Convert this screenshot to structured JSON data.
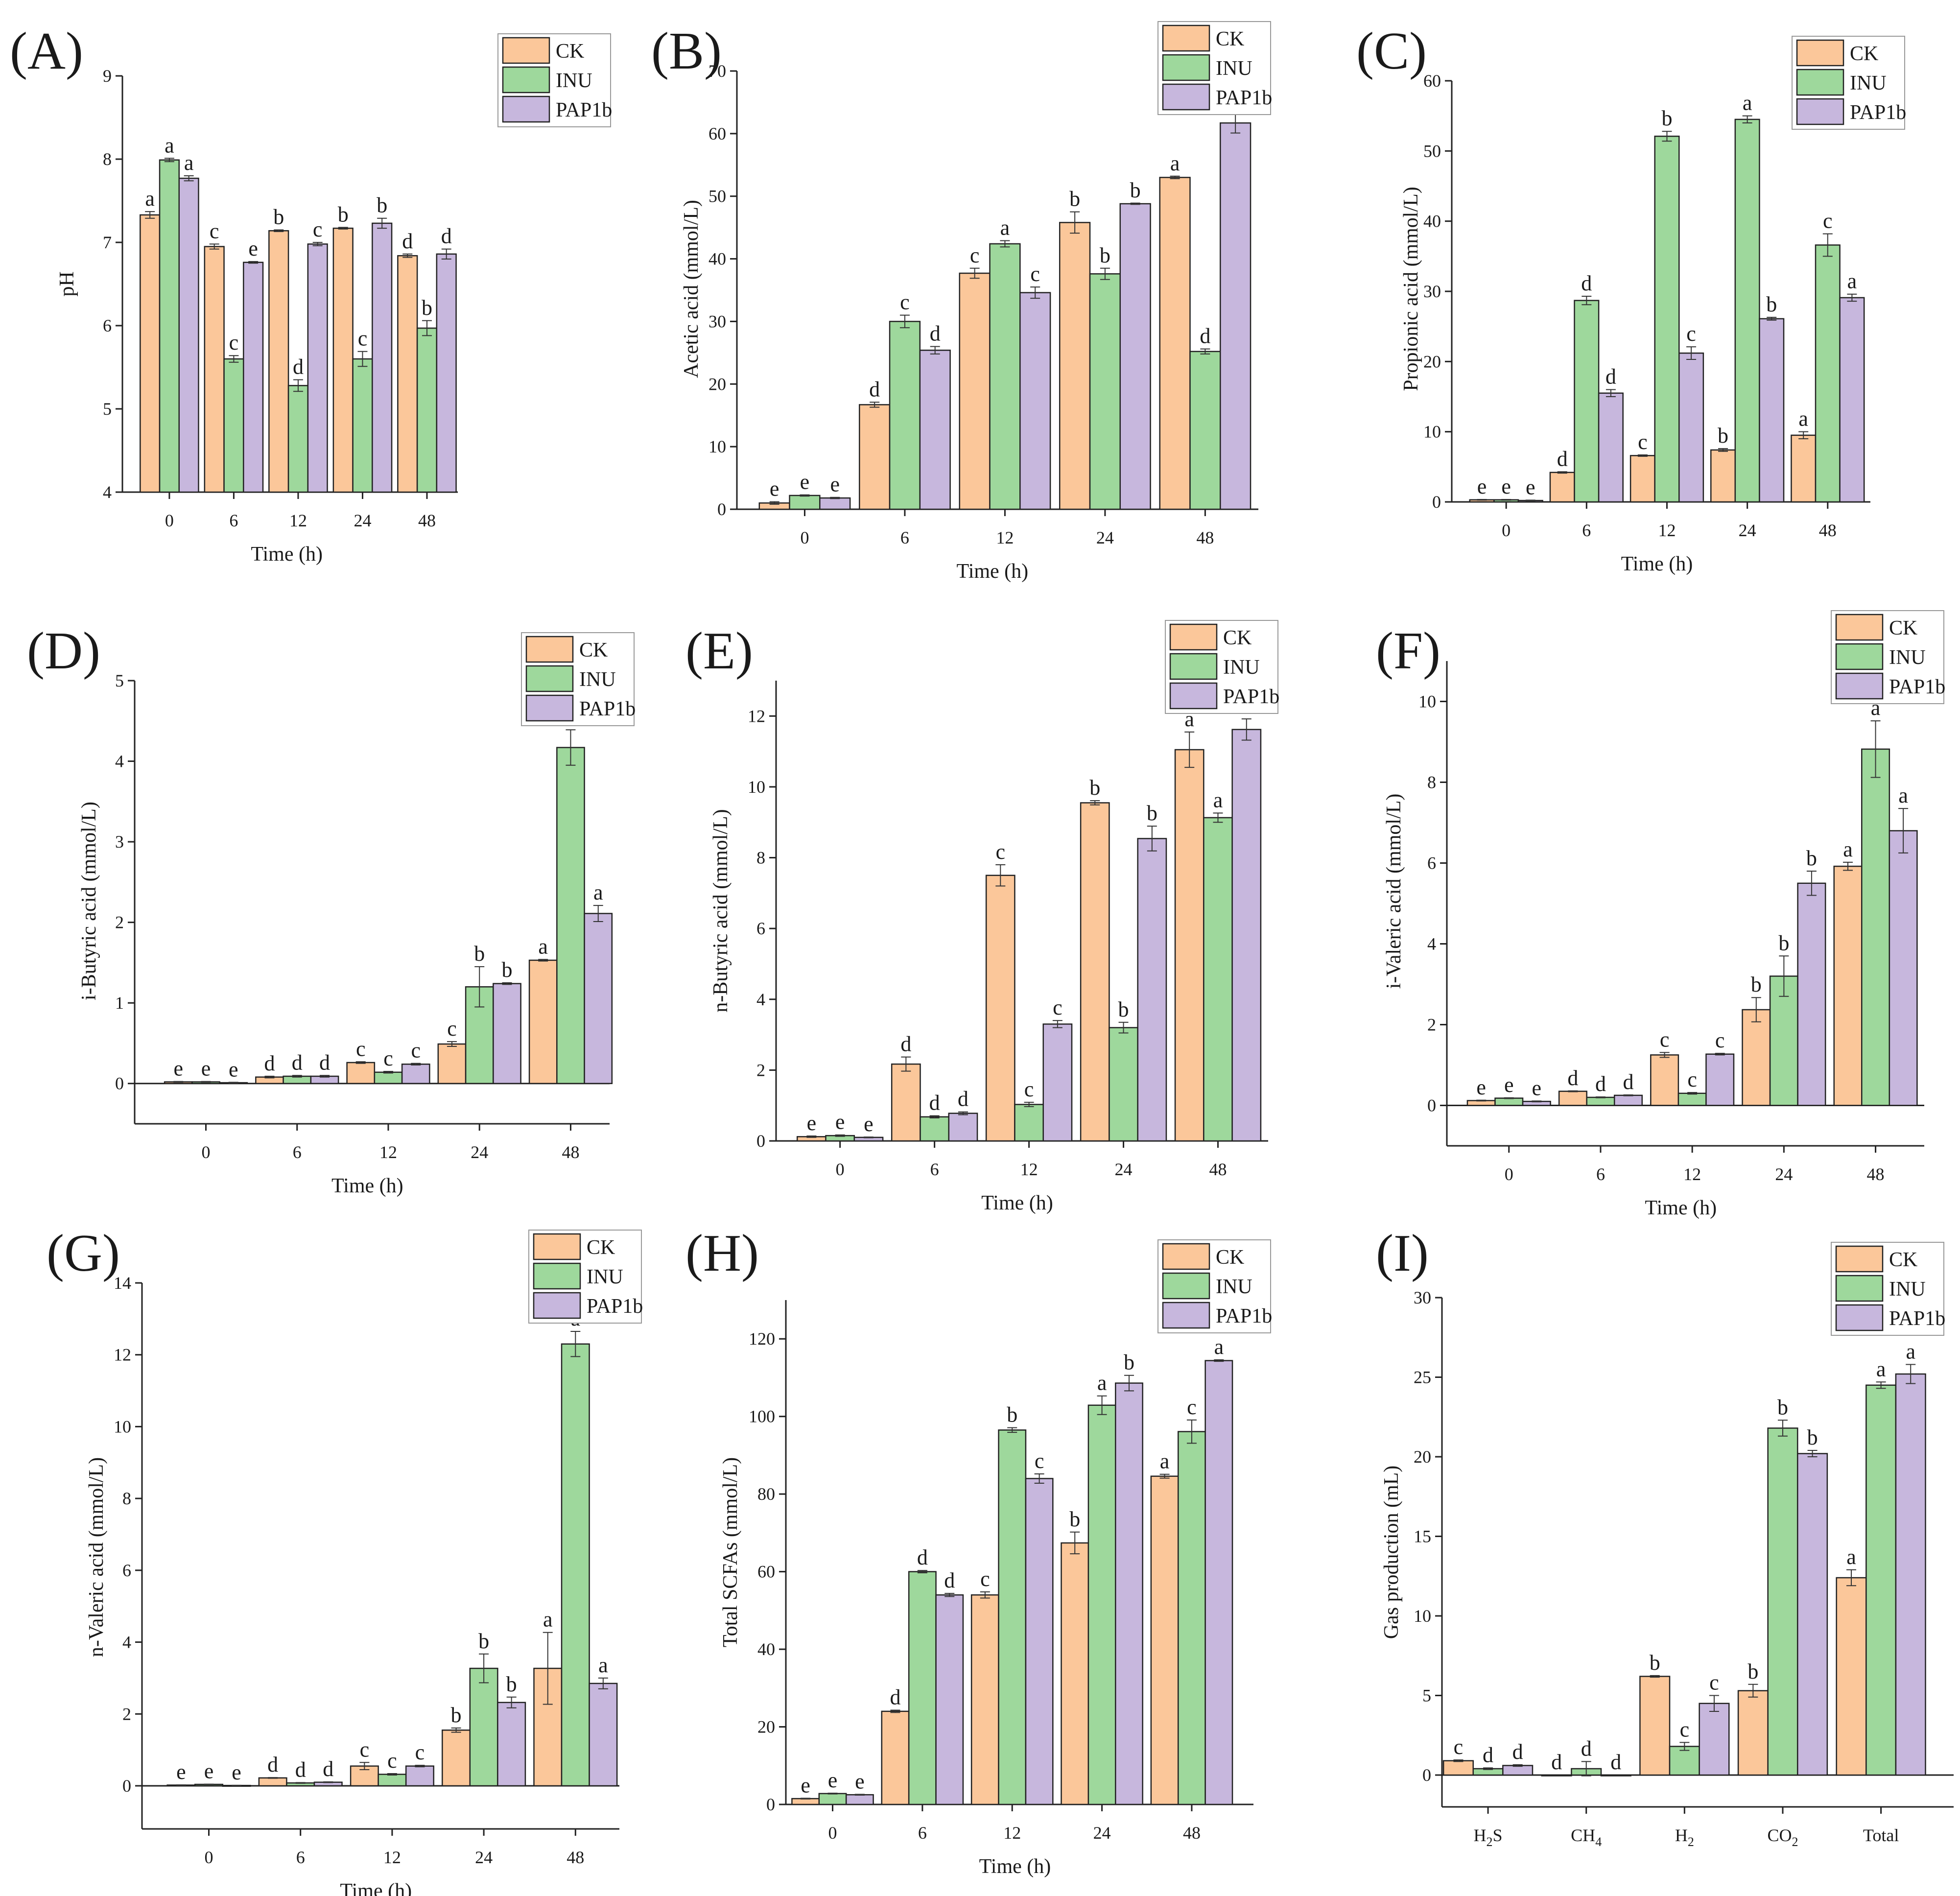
{
  "colors": {
    "CK": "#fbc79a",
    "INU": "#9ed89c",
    "PAP1b": "#c7b7dd",
    "edge": "#222222"
  },
  "legend": [
    "CK",
    "INU",
    "PAP1b"
  ],
  "chart_data": [
    {
      "id": "A",
      "label": "(A)",
      "type": "bar",
      "ylabel": "pH",
      "xlabel": "Time (h)",
      "categories": [
        "0",
        "6",
        "12",
        "24",
        "48"
      ],
      "ylim": [
        4,
        9
      ],
      "yticks": [
        4,
        5,
        6,
        7,
        8,
        9
      ],
      "series": [
        {
          "name": "CK",
          "values": [
            7.33,
            6.95,
            7.14,
            7.17,
            6.84
          ],
          "errors": [
            0.04,
            0.03,
            0.01,
            0.01,
            0.02
          ],
          "letters": [
            "a",
            "c",
            "b",
            "b",
            "d"
          ]
        },
        {
          "name": "INU",
          "values": [
            7.99,
            5.6,
            5.28,
            5.6,
            5.97
          ],
          "errors": [
            0.02,
            0.04,
            0.07,
            0.09,
            0.09
          ],
          "letters": [
            "a",
            "c",
            "d",
            "c",
            "b"
          ]
        },
        {
          "name": "PAP1b",
          "values": [
            7.77,
            6.76,
            6.98,
            7.23,
            6.86
          ],
          "errors": [
            0.03,
            0.01,
            0.02,
            0.06,
            0.06
          ],
          "letters": [
            "a",
            "e",
            "c",
            "b",
            "d"
          ]
        }
      ]
    },
    {
      "id": "B",
      "label": "(B)",
      "type": "bar",
      "ylabel": "Acetic acid (mmol/L)",
      "xlabel": "Time (h)",
      "categories": [
        "0",
        "6",
        "12",
        "24",
        "48"
      ],
      "ylim": [
        0,
        70
      ],
      "yticks": [
        0,
        10,
        20,
        30,
        40,
        50,
        60,
        70
      ],
      "series": [
        {
          "name": "CK",
          "values": [
            1.0,
            16.7,
            37.7,
            45.8,
            53.0
          ],
          "errors": [
            0.2,
            0.4,
            0.8,
            1.7,
            0.2
          ],
          "letters": [
            "e",
            "d",
            "c",
            "b",
            "a"
          ]
        },
        {
          "name": "INU",
          "values": [
            2.2,
            30.0,
            42.4,
            37.6,
            25.2
          ],
          "errors": [
            0.1,
            1.0,
            0.5,
            0.9,
            0.4
          ],
          "letters": [
            "e",
            "c",
            "a",
            "b",
            "d"
          ]
        },
        {
          "name": "PAP1b",
          "values": [
            1.8,
            25.4,
            34.6,
            48.8,
            61.7
          ],
          "errors": [
            0.1,
            0.6,
            0.9,
            0.1,
            1.6
          ],
          "letters": [
            "e",
            "d",
            "c",
            "b",
            "a"
          ]
        }
      ]
    },
    {
      "id": "C",
      "label": "(C)",
      "type": "bar",
      "ylabel": "Propionic acid (mmol/L)",
      "xlabel": "Time (h)",
      "categories": [
        "0",
        "6",
        "12",
        "24",
        "48"
      ],
      "ylim": [
        0,
        60
      ],
      "yticks": [
        0,
        10,
        20,
        30,
        40,
        50,
        60
      ],
      "series": [
        {
          "name": "CK",
          "values": [
            0.3,
            4.2,
            6.6,
            7.4,
            9.5
          ],
          "errors": [
            0.05,
            0.1,
            0.1,
            0.2,
            0.5
          ],
          "letters": [
            "e",
            "d",
            "c",
            "b",
            "a"
          ]
        },
        {
          "name": "INU",
          "values": [
            0.3,
            28.7,
            52.1,
            54.5,
            36.6
          ],
          "errors": [
            0.05,
            0.6,
            0.7,
            0.5,
            1.6
          ],
          "letters": [
            "e",
            "d",
            "b",
            "a",
            "c"
          ]
        },
        {
          "name": "PAP1b",
          "values": [
            0.2,
            15.5,
            21.2,
            26.1,
            29.1
          ],
          "errors": [
            0.05,
            0.5,
            0.9,
            0.2,
            0.5
          ],
          "letters": [
            "e",
            "d",
            "c",
            "b",
            "a"
          ]
        }
      ]
    },
    {
      "id": "D",
      "label": "(D)",
      "type": "bar",
      "ylabel": "i-Butyric acid (mmol/L)",
      "xlabel": "Time (h)",
      "categories": [
        "0",
        "6",
        "12",
        "24",
        "48"
      ],
      "ylim": [
        -0.5,
        5
      ],
      "yticks": [
        0,
        1,
        2,
        3,
        4,
        5
      ],
      "series": [
        {
          "name": "CK",
          "values": [
            0.02,
            0.08,
            0.26,
            0.49,
            1.53
          ],
          "errors": [
            0.005,
            0.01,
            0.01,
            0.03,
            0.01
          ],
          "letters": [
            "e",
            "d",
            "c",
            "c",
            "a"
          ]
        },
        {
          "name": "INU",
          "values": [
            0.02,
            0.09,
            0.14,
            1.2,
            4.17
          ],
          "errors": [
            0.005,
            0.01,
            0.01,
            0.25,
            0.22
          ],
          "letters": [
            "e",
            "d",
            "c",
            "b",
            "a"
          ]
        },
        {
          "name": "PAP1b",
          "values": [
            0.01,
            0.09,
            0.24,
            1.24,
            2.11
          ],
          "errors": [
            0.005,
            0.01,
            0.01,
            0.01,
            0.1
          ],
          "letters": [
            "e",
            "d",
            "c",
            "b",
            "a"
          ]
        }
      ]
    },
    {
      "id": "E",
      "label": "(E)",
      "type": "bar",
      "ylabel": "n-Butyric acid (mmol/L)",
      "xlabel": "Time (h)",
      "categories": [
        "0",
        "6",
        "12",
        "24",
        "48"
      ],
      "ylim": [
        0,
        13
      ],
      "yticks": [
        0,
        2,
        4,
        6,
        8,
        10,
        12
      ],
      "series": [
        {
          "name": "CK",
          "values": [
            0.12,
            2.17,
            7.5,
            9.55,
            11.05
          ],
          "errors": [
            0.02,
            0.2,
            0.3,
            0.06,
            0.5
          ],
          "letters": [
            "e",
            "d",
            "c",
            "b",
            "a"
          ]
        },
        {
          "name": "INU",
          "values": [
            0.15,
            0.68,
            1.03,
            3.2,
            9.13
          ],
          "errors": [
            0.02,
            0.03,
            0.06,
            0.15,
            0.13
          ],
          "letters": [
            "e",
            "d",
            "c",
            "b",
            "a"
          ]
        },
        {
          "name": "PAP1b",
          "values": [
            0.1,
            0.78,
            3.3,
            8.54,
            11.62
          ],
          "errors": [
            0.01,
            0.04,
            0.1,
            0.35,
            0.3
          ],
          "letters": [
            "e",
            "d",
            "c",
            "b",
            "a"
          ]
        }
      ]
    },
    {
      "id": "F",
      "label": "(F)",
      "type": "bar",
      "ylabel": "i-Valeric acid (mmol/L)",
      "xlabel": "Time (h)",
      "categories": [
        "0",
        "6",
        "12",
        "24",
        "48"
      ],
      "ylim": [
        -1,
        11
      ],
      "yticks": [
        0,
        2,
        4,
        6,
        8,
        10
      ],
      "series": [
        {
          "name": "CK",
          "values": [
            0.12,
            0.35,
            1.25,
            2.37,
            5.92
          ],
          "errors": [
            0.01,
            0.01,
            0.06,
            0.3,
            0.1
          ],
          "letters": [
            "e",
            "d",
            "c",
            "b",
            "a"
          ]
        },
        {
          "name": "INU",
          "values": [
            0.18,
            0.2,
            0.3,
            3.2,
            8.82
          ],
          "errors": [
            0.01,
            0.01,
            0.02,
            0.5,
            0.7
          ],
          "letters": [
            "e",
            "d",
            "c",
            "b",
            "a"
          ]
        },
        {
          "name": "PAP1b",
          "values": [
            0.1,
            0.25,
            1.27,
            5.5,
            6.8
          ],
          "errors": [
            0.01,
            0.01,
            0.02,
            0.3,
            0.55
          ],
          "letters": [
            "e",
            "d",
            "c",
            "b",
            "a"
          ]
        }
      ]
    },
    {
      "id": "G",
      "label": "(G)",
      "type": "bar",
      "ylabel": "n-Valeric acid (mmol/L)",
      "xlabel": "Time (h)",
      "categories": [
        "0",
        "6",
        "12",
        "24",
        "48"
      ],
      "ylim": [
        -1.2,
        14
      ],
      "yticks": [
        0,
        2,
        4,
        6,
        8,
        10,
        12,
        14
      ],
      "series": [
        {
          "name": "CK",
          "values": [
            0.02,
            0.22,
            0.55,
            1.55,
            3.27
          ],
          "errors": [
            0.005,
            0.01,
            0.1,
            0.06,
            1.0
          ],
          "letters": [
            "e",
            "d",
            "c",
            "b",
            "a"
          ]
        },
        {
          "name": "INU",
          "values": [
            0.04,
            0.08,
            0.32,
            3.27,
            12.3
          ],
          "errors": [
            0.005,
            0.01,
            0.02,
            0.4,
            0.35
          ],
          "letters": [
            "e",
            "d",
            "c",
            "b",
            "a"
          ]
        },
        {
          "name": "PAP1b",
          "values": [
            0.01,
            0.1,
            0.55,
            2.32,
            2.85
          ],
          "errors": [
            0.005,
            0.01,
            0.02,
            0.15,
            0.15
          ],
          "letters": [
            "e",
            "d",
            "c",
            "b",
            "a"
          ]
        }
      ]
    },
    {
      "id": "H",
      "label": "(H)",
      "type": "bar",
      "ylabel": "Total SCFAs (mmol/L)",
      "xlabel": "Time (h)",
      "categories": [
        "0",
        "6",
        "12",
        "24",
        "48"
      ],
      "ylim": [
        0,
        130
      ],
      "yticks": [
        0,
        20,
        40,
        60,
        80,
        100,
        120
      ],
      "series": [
        {
          "name": "CK",
          "values": [
            1.5,
            24.0,
            54.0,
            67.4,
            84.6
          ],
          "errors": [
            0.1,
            0.3,
            0.8,
            2.8,
            0.5
          ],
          "letters": [
            "e",
            "d",
            "c",
            "b",
            "a"
          ]
        },
        {
          "name": "INU",
          "values": [
            2.8,
            60.0,
            96.5,
            102.9,
            96.1
          ],
          "errors": [
            0.1,
            0.3,
            0.6,
            2.4,
            3.0
          ],
          "letters": [
            "e",
            "d",
            "b",
            "a",
            "c"
          ]
        },
        {
          "name": "PAP1b",
          "values": [
            2.5,
            54.0,
            84.0,
            108.6,
            114.4
          ],
          "errors": [
            0.1,
            0.4,
            1.2,
            2.0,
            0.2
          ],
          "letters": [
            "e",
            "d",
            "c",
            "b",
            "a"
          ]
        }
      ]
    },
    {
      "id": "I",
      "label": "(I)",
      "type": "bar",
      "ylabel": "Gas production (mL)",
      "xlabel": "",
      "categories": [
        "H2S",
        "CH4",
        "H2",
        "CO2",
        "Total"
      ],
      "category_display": [
        [
          "H",
          "2",
          "S"
        ],
        [
          "CH",
          "4",
          ""
        ],
        [
          "H",
          "2",
          ""
        ],
        [
          "CO",
          "2",
          ""
        ],
        [
          "Total",
          "",
          ""
        ]
      ],
      "ylim": [
        -2,
        30
      ],
      "yticks": [
        0,
        5,
        10,
        15,
        20,
        25,
        30
      ],
      "series": [
        {
          "name": "CK",
          "values": [
            0.9,
            0.0,
            6.2,
            5.3,
            12.4
          ],
          "errors": [
            0.05,
            0.0,
            0.05,
            0.4,
            0.5
          ],
          "letters": [
            "c",
            "d",
            "b",
            "b",
            "a"
          ]
        },
        {
          "name": "INU",
          "values": [
            0.4,
            0.4,
            1.8,
            21.8,
            24.5
          ],
          "errors": [
            0.05,
            0.45,
            0.25,
            0.5,
            0.2
          ],
          "letters": [
            "d",
            "d",
            "c",
            "b",
            "a"
          ]
        },
        {
          "name": "PAP1b",
          "values": [
            0.6,
            0.0,
            4.5,
            20.2,
            25.2
          ],
          "errors": [
            0.05,
            0.0,
            0.5,
            0.2,
            0.6
          ],
          "letters": [
            "d",
            "d",
            "c",
            "b",
            "a"
          ]
        }
      ]
    }
  ]
}
